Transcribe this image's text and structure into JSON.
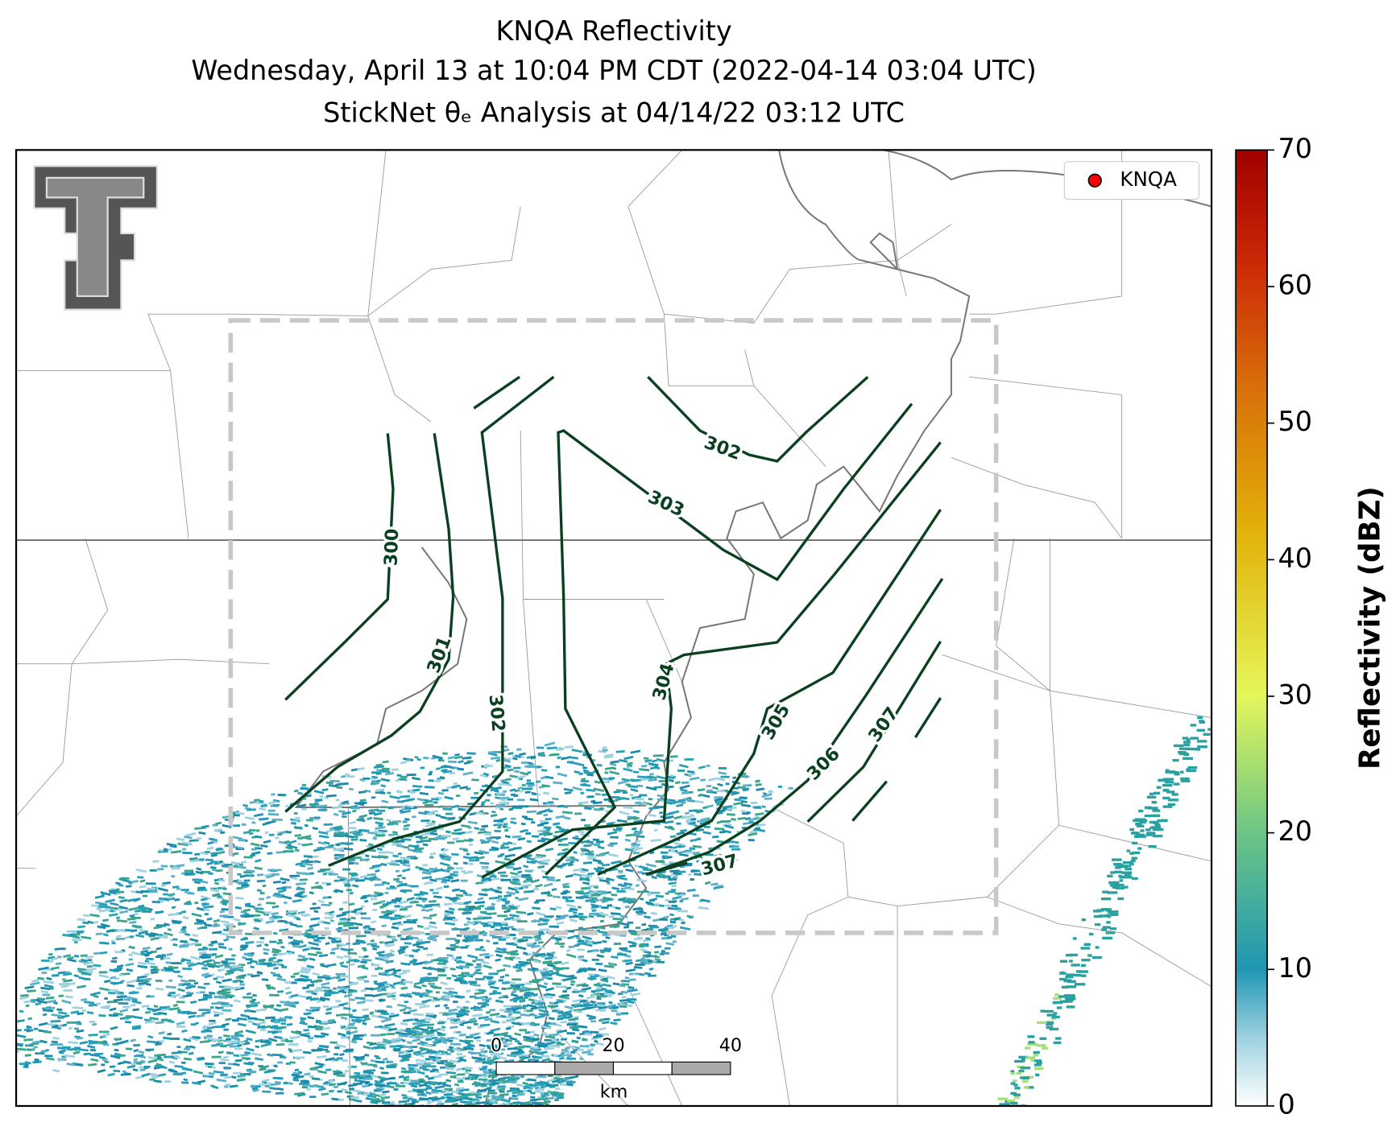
{
  "header": {
    "title": "KNQA Reflectivity",
    "subtitle": "Wednesday, April 13 at 10:04 PM CDT (2022-04-14 03:04 UTC)",
    "analysis": "StickNet θₑ Analysis at 04/14/22 03:12 UTC"
  },
  "legend": {
    "station": "KNQA"
  },
  "colorbar": {
    "label": "Reflectivity (dBZ)",
    "lim": [
      0,
      70
    ],
    "ticks": [
      0,
      10,
      20,
      30,
      40,
      50,
      60,
      70
    ]
  },
  "scale_bar": {
    "ticks": [
      0,
      20,
      40
    ],
    "unit": "km"
  },
  "contour_labels": [
    300,
    301,
    302,
    302,
    303,
    304,
    305,
    306,
    307,
    307
  ]
}
